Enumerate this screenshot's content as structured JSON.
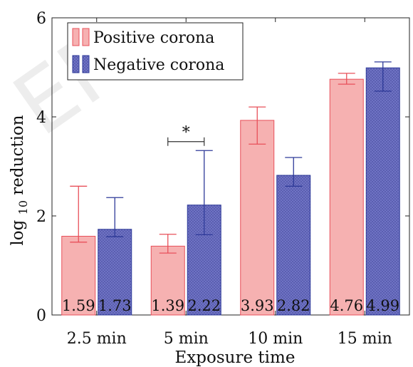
{
  "chart_data": {
    "type": "bar",
    "xlabel": "Exposure time",
    "ylabel_main": "log",
    "ylabel_sub": "10",
    "ylabel_rest": " reduction",
    "ylim": [
      0,
      6
    ],
    "yticks": [
      "0",
      "2",
      "4",
      "6"
    ],
    "ytick_values": [
      0,
      2,
      4,
      6
    ],
    "categories": [
      "2.5 min",
      "5 min",
      "10 min",
      "15 min"
    ],
    "series": [
      {
        "name": "Positive corona",
        "color_fill": "#f6b1b1",
        "color_edge": "#e8505a",
        "values": [
          1.59,
          1.39,
          3.93,
          4.76
        ],
        "labels": [
          "1.59",
          "1.39",
          "3.93",
          "4.76"
        ],
        "err_low": [
          1.47,
          1.25,
          3.45,
          4.66
        ],
        "err_high": [
          2.6,
          1.63,
          4.2,
          4.88
        ]
      },
      {
        "name": "Negative corona",
        "color_fill": "#6f73c4",
        "color_edge": "#2e3a99",
        "values": [
          1.73,
          2.22,
          2.82,
          4.99
        ],
        "labels": [
          "1.73",
          "2.22",
          "2.82",
          "4.99"
        ],
        "err_low": [
          1.58,
          1.62,
          2.6,
          4.52
        ],
        "err_high": [
          2.37,
          3.32,
          3.18,
          5.11
        ]
      }
    ],
    "significance": {
      "category": "5 min",
      "y": 3.5,
      "label": "*"
    },
    "legend_position": "top-left"
  }
}
